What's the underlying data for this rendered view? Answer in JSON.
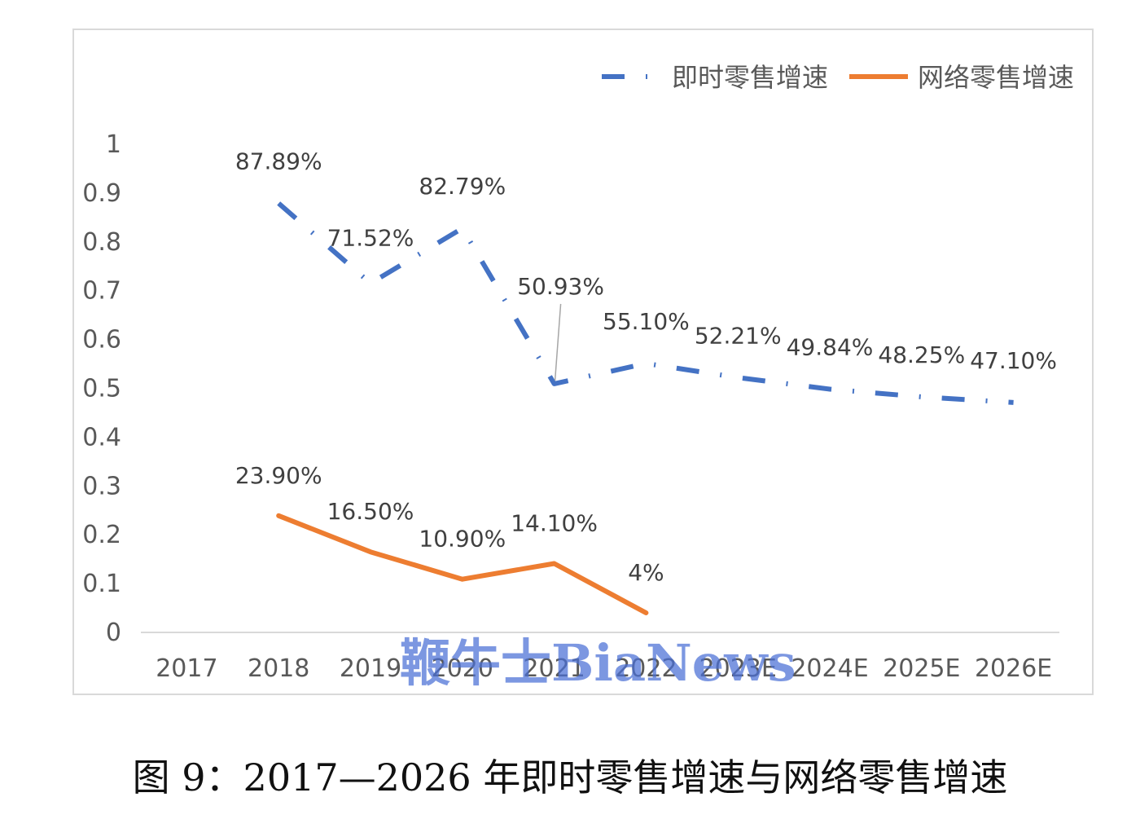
{
  "chart_data": {
    "type": "line",
    "categories": [
      "2017",
      "2018",
      "2019",
      "2020",
      "2021",
      "2022",
      "2023E",
      "2024E",
      "2025E",
      "2026E"
    ],
    "y_ticks": [
      "0",
      "0.1",
      "0.2",
      "0.3",
      "0.4",
      "0.5",
      "0.6",
      "0.7",
      "0.8",
      "0.9",
      "1"
    ],
    "ylim": [
      0,
      1
    ],
    "grid": false,
    "legend_position": "top-right",
    "series": [
      {
        "name": "即时零售增速",
        "color": "#4472c4",
        "style": "dash-dot",
        "values": [
          null,
          0.8789,
          0.7152,
          0.8279,
          0.5093,
          0.551,
          0.5221,
          0.4984,
          0.4825,
          0.471
        ],
        "labels": [
          null,
          "87.89%",
          "71.52%",
          "82.79%",
          "50.93%",
          "55.10%",
          "52.21%",
          "49.84%",
          "48.25%",
          "47.10%"
        ]
      },
      {
        "name": "网络零售增速",
        "color": "#ed7d31",
        "style": "solid",
        "values": [
          null,
          0.239,
          0.165,
          0.109,
          0.141,
          0.04,
          null,
          null,
          null,
          null
        ],
        "labels": [
          null,
          "23.90%",
          "16.50%",
          "10.90%",
          "14.10%",
          "4%",
          null,
          null,
          null,
          null
        ]
      }
    ]
  },
  "watermark": "鞭牛士BiaNews",
  "caption": "图 9：2017—2026 年即时零售增速与网络零售增速"
}
